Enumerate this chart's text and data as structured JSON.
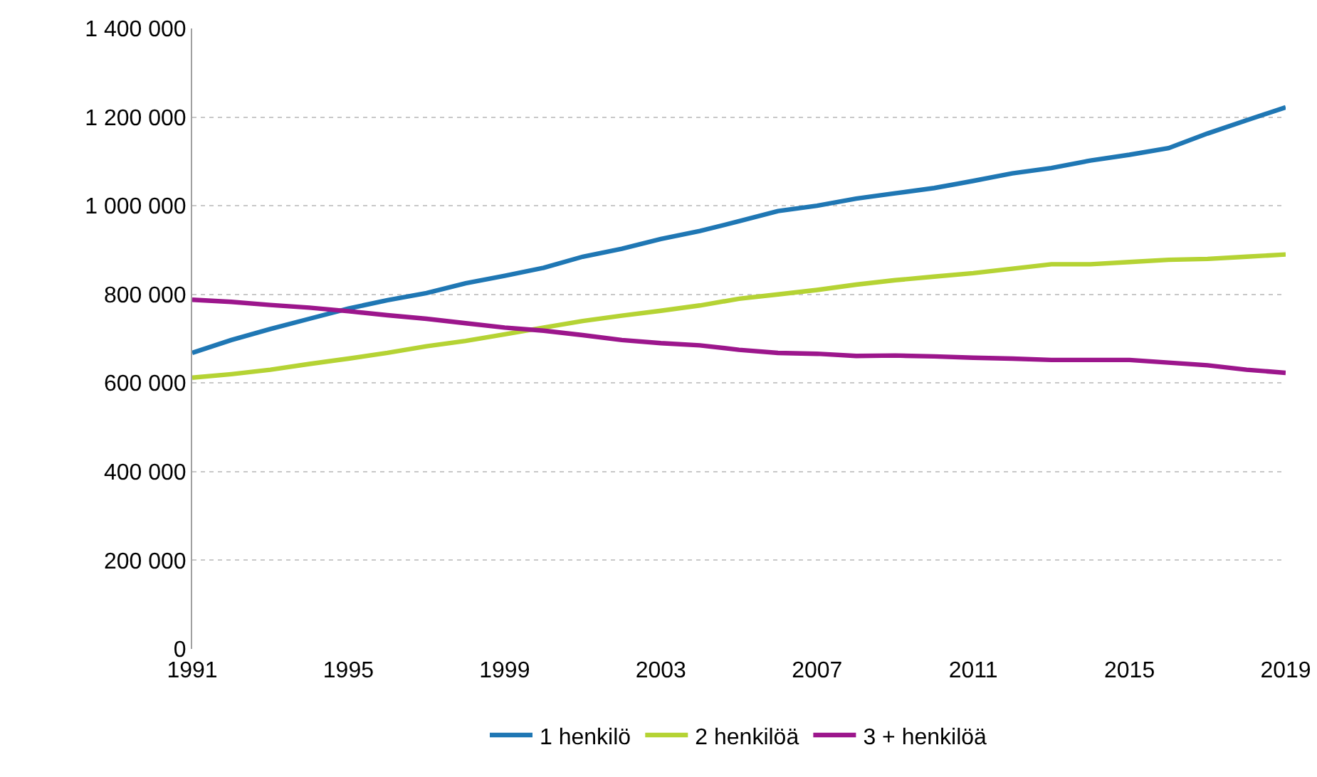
{
  "chart_data": {
    "type": "line",
    "x": [
      1991,
      1992,
      1993,
      1994,
      1995,
      1996,
      1997,
      1998,
      1999,
      2000,
      2001,
      2002,
      2003,
      2004,
      2005,
      2006,
      2007,
      2008,
      2009,
      2010,
      2011,
      2012,
      2013,
      2014,
      2015,
      2016,
      2017,
      2018,
      2019
    ],
    "series": [
      {
        "name": "1 henkilö",
        "color": "#1f77b4",
        "values": [
          668000,
          697000,
          722000,
          745000,
          768000,
          787000,
          803000,
          825000,
          842000,
          860000,
          885000,
          903000,
          925000,
          943000,
          965000,
          988000,
          1000000,
          1016000,
          1028000,
          1040000,
          1056000,
          1073000,
          1085000,
          1102000,
          1115000,
          1130000,
          1163000,
          1193000,
          1222000
        ]
      },
      {
        "name": "2 henkilöä",
        "color": "#b5d334",
        "values": [
          612000,
          620000,
          630000,
          643000,
          655000,
          668000,
          683000,
          695000,
          710000,
          725000,
          740000,
          752000,
          763000,
          775000,
          790000,
          800000,
          810000,
          822000,
          832000,
          840000,
          848000,
          858000,
          868000,
          868000,
          873000,
          878000,
          880000,
          885000,
          890000
        ]
      },
      {
        "name": "3 + henkilöä",
        "color": "#9c168c",
        "values": [
          788000,
          783000,
          776000,
          770000,
          762000,
          753000,
          745000,
          735000,
          725000,
          718000,
          708000,
          697000,
          690000,
          685000,
          675000,
          668000,
          666000,
          661000,
          662000,
          660000,
          657000,
          655000,
          652000,
          652000,
          652000,
          646000,
          640000,
          630000,
          623000
        ]
      }
    ],
    "xlim": [
      1991,
      2019
    ],
    "xticks": [
      1991,
      1995,
      1999,
      2003,
      2007,
      2011,
      2015,
      2019
    ],
    "ylim": [
      0,
      1400000
    ],
    "yticks": [
      {
        "value": 0,
        "label": "0"
      },
      {
        "value": 200000,
        "label": "200 000"
      },
      {
        "value": 400000,
        "label": "400 000"
      },
      {
        "value": 600000,
        "label": "600 000"
      },
      {
        "value": 800000,
        "label": "800 000"
      },
      {
        "value": 1000000,
        "label": "1 000 000"
      },
      {
        "value": 1200000,
        "label": "1 200 000"
      },
      {
        "value": 1400000,
        "label": "1 400 000"
      }
    ],
    "grid": "y",
    "legend": "bottom",
    "marker": "none",
    "line_style": "solid"
  }
}
